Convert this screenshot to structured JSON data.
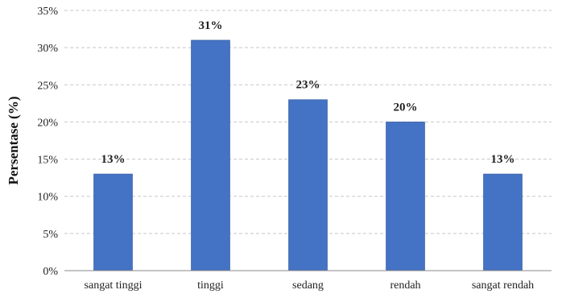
{
  "chart_data": {
    "type": "bar",
    "title": "",
    "xlabel": "",
    "ylabel": "Persentase (%)",
    "categories": [
      "sangat tinggi",
      "tinggi",
      "sedang",
      "rendah",
      "sangat rendah"
    ],
    "values": [
      13,
      31,
      23,
      20,
      13
    ],
    "value_labels": [
      "13%",
      "31%",
      "23%",
      "20%",
      "13%"
    ],
    "ylim": [
      0,
      35
    ],
    "yticks": [
      0,
      5,
      10,
      15,
      20,
      25,
      30,
      35
    ],
    "ytick_labels": [
      "0%",
      "5%",
      "10%",
      "15%",
      "20%",
      "25%",
      "30%",
      "35%"
    ],
    "grid": true,
    "legend": "none",
    "bar_color": "#4472c4",
    "bar_edge_color": "#2f5597"
  }
}
